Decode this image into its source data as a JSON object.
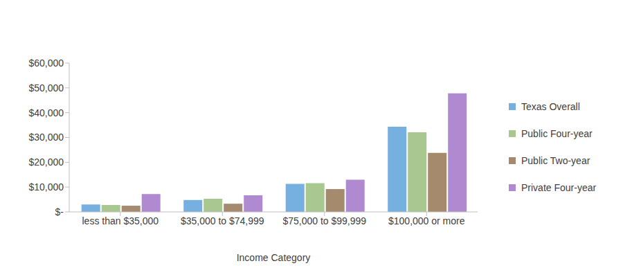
{
  "chart_data": {
    "type": "bar",
    "x_label": "Income Category",
    "categories": [
      "less than $35,000",
      "$35,000 to $74,999",
      "$75,000 to $99,999",
      "$100,000 or more"
    ],
    "series": [
      {
        "name": "Texas Overall",
        "color": "#75b0e0",
        "values": [
          3000,
          4800,
          11300,
          34300
        ]
      },
      {
        "name": "Public Four-year",
        "color": "#a8c890",
        "values": [
          2800,
          5300,
          11600,
          32100
        ]
      },
      {
        "name": "Public Two-year",
        "color": "#a58a6e",
        "values": [
          2500,
          3300,
          9200,
          23800
        ]
      },
      {
        "name": "Private Four-year",
        "color": "#b08ad0",
        "values": [
          7200,
          6700,
          13000,
          47800
        ]
      }
    ],
    "ylim": [
      0,
      60000
    ],
    "yticks": [
      {
        "value": 0,
        "label": "$-"
      },
      {
        "value": 10000,
        "label": "$10,000"
      },
      {
        "value": 20000,
        "label": "$20,000"
      },
      {
        "value": 30000,
        "label": "$30,000"
      },
      {
        "value": 40000,
        "label": "$40,000"
      },
      {
        "value": 50000,
        "label": "$50,000"
      },
      {
        "value": 60000,
        "label": "$60,000"
      }
    ],
    "grid": false,
    "legend": "right"
  }
}
